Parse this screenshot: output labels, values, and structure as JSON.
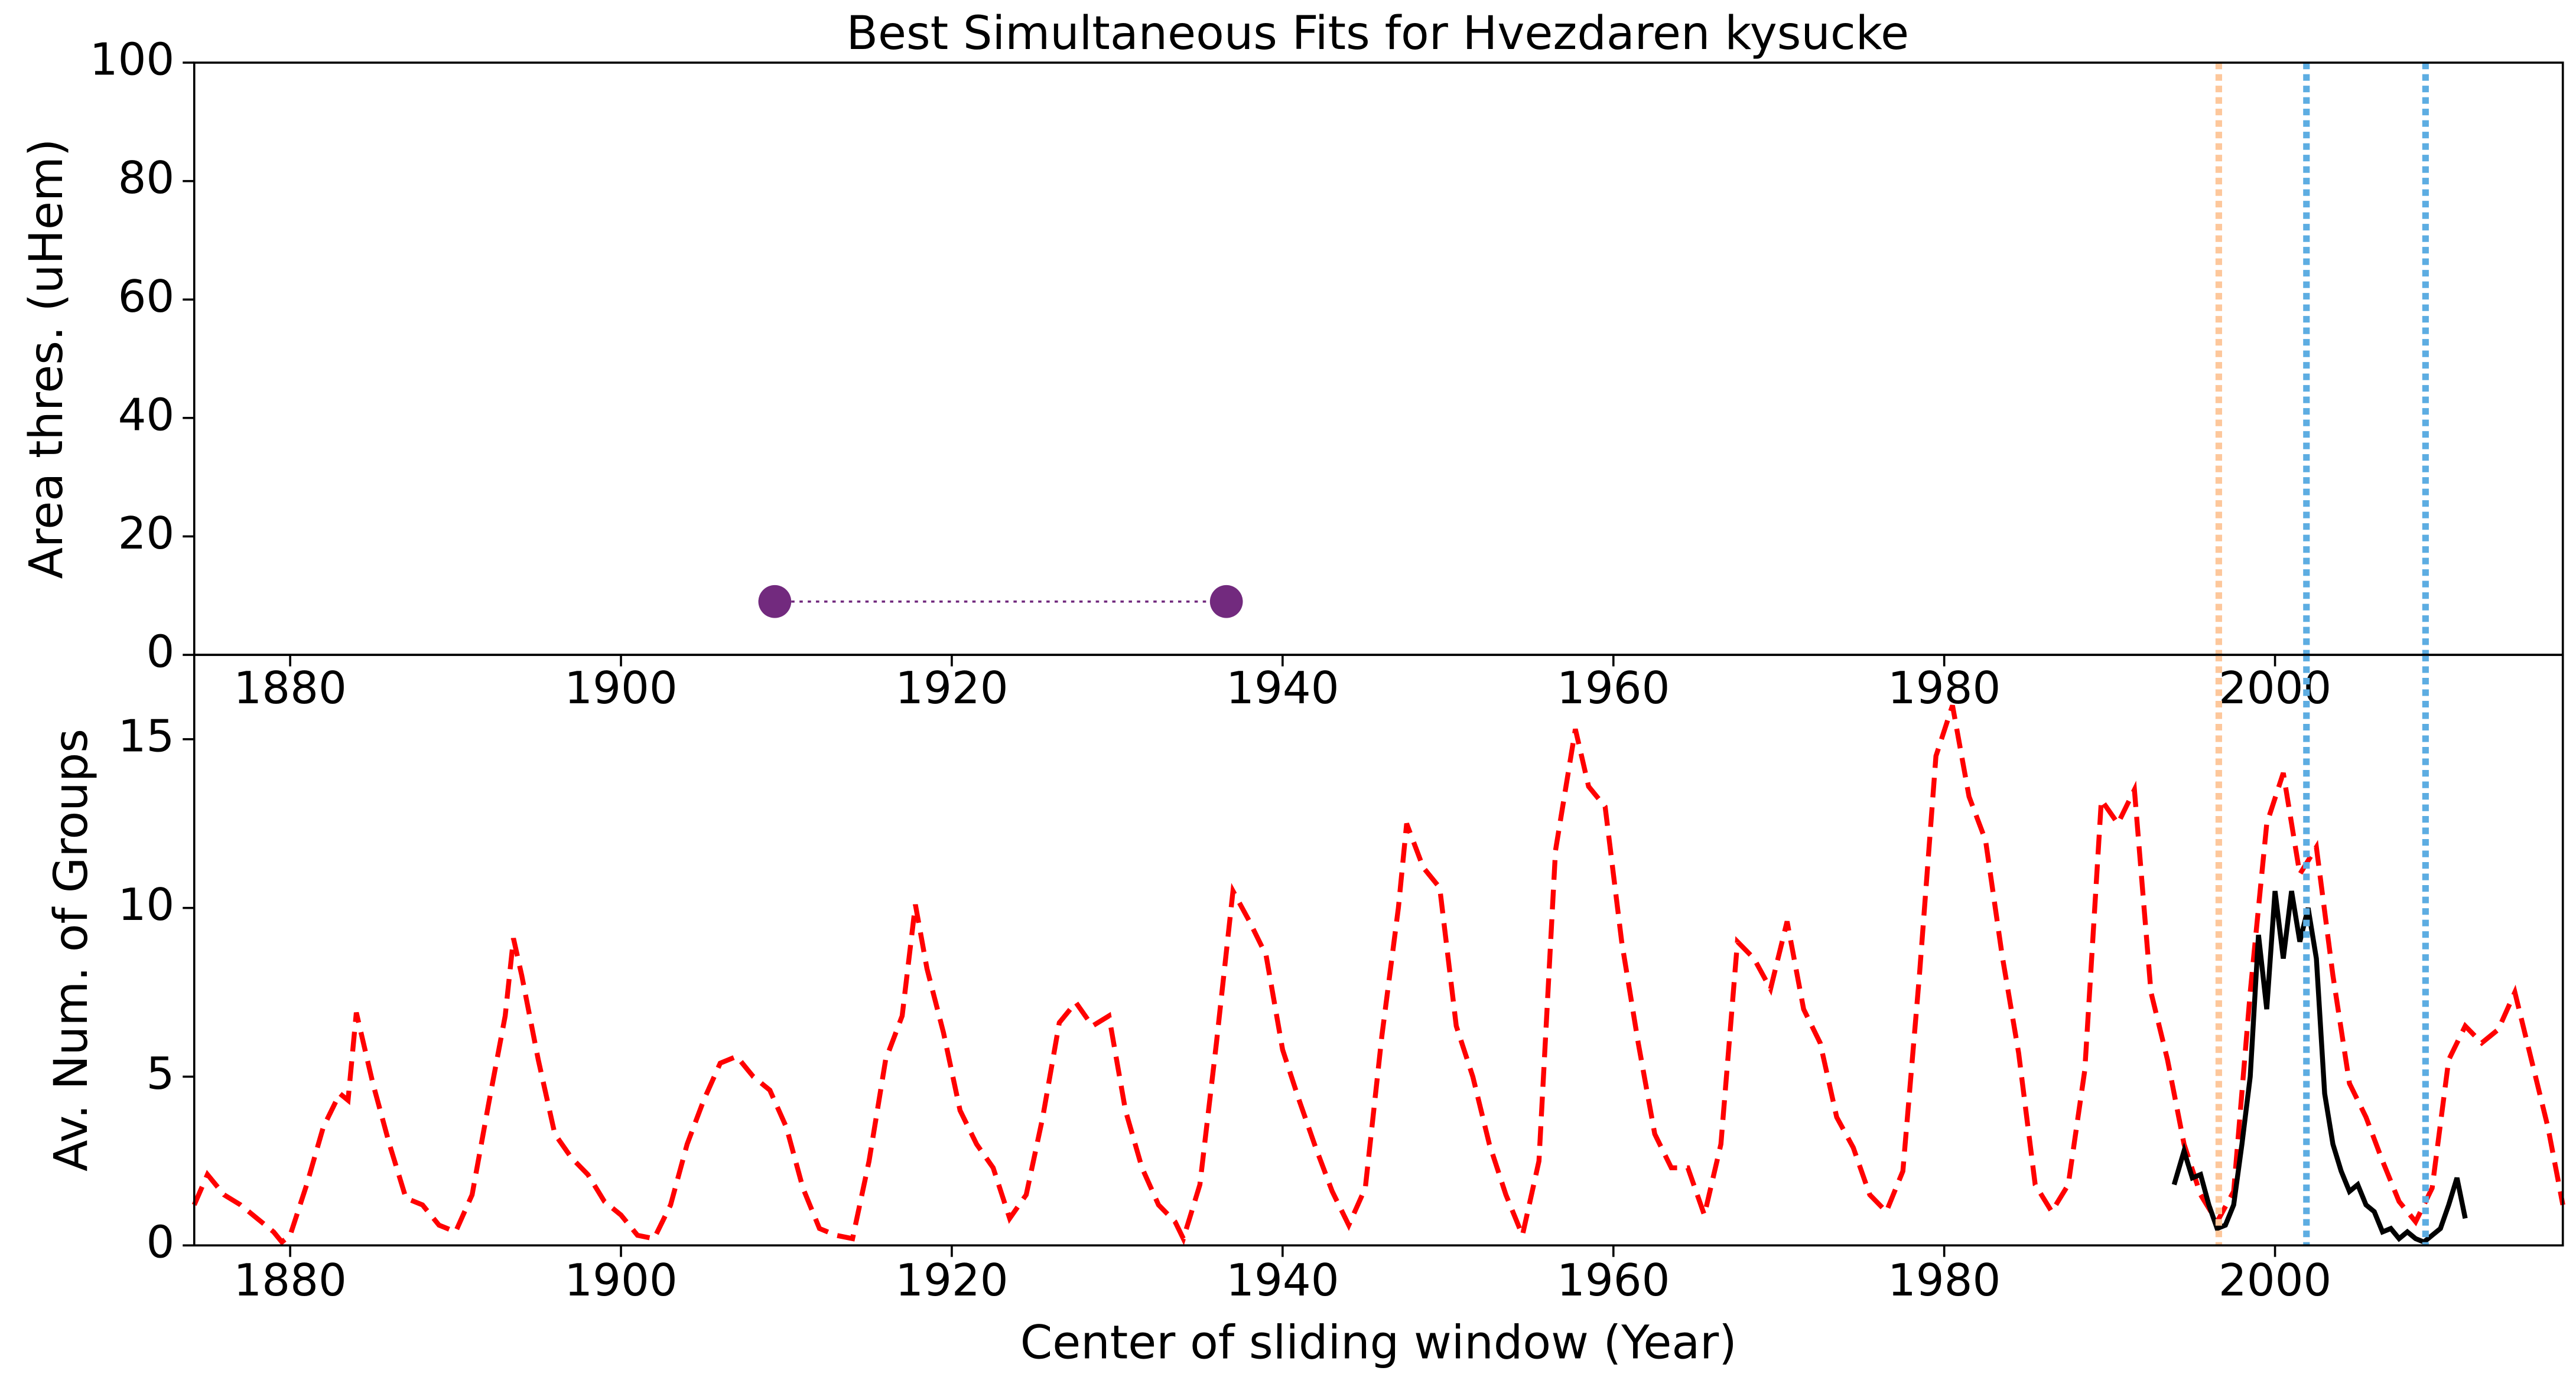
{
  "chart_data": [
    {
      "type": "line",
      "title": "Best Simultaneous Fits for Hvezdaren kysucke",
      "ylabel": "Area thres. (uHem)",
      "x": [
        1909.3,
        1936.6
      ],
      "series": [
        {
          "color": "#722a7e",
          "values": [
            9,
            9
          ],
          "linestyle": "dotted",
          "marker": true
        }
      ],
      "xlim": [
        1874.2,
        2017.4
      ],
      "xticks": [
        1880,
        1900,
        1920,
        1940,
        1960,
        1980,
        2000
      ],
      "ylim": [
        0,
        100
      ],
      "yticks": [
        0,
        20,
        40,
        60,
        80,
        100
      ],
      "vlines": [
        {
          "x": 1996.6,
          "color": "#fdc79b"
        },
        {
          "x": 2001.9,
          "color": "#5dade2"
        },
        {
          "x": 2009.1,
          "color": "#5dade2"
        }
      ]
    },
    {
      "type": "line",
      "xlabel": "Center of sliding window (Year)",
      "ylabel": "Av. Num. of Groups",
      "series": [
        {
          "color": "#ff0000",
          "linestyle": "dashed",
          "x": [
            1874.2,
            1875,
            1876,
            1877,
            1878,
            1879,
            1879.5,
            1880,
            1881,
            1882,
            1883,
            1883.5,
            1884,
            1885,
            1886,
            1887,
            1888,
            1889,
            1890,
            1891,
            1892,
            1893,
            1893.5,
            1894,
            1895,
            1896,
            1897,
            1898,
            1899,
            1900,
            1901,
            1902,
            1903,
            1904,
            1905,
            1906,
            1907,
            1908,
            1909,
            1910,
            1911,
            1912,
            1913,
            1914,
            1915,
            1916,
            1917,
            1917.8,
            1918.5,
            1919.5,
            1920.5,
            1921.5,
            1922.5,
            1923.5,
            1924.5,
            1925.5,
            1926.5,
            1927.5,
            1928.5,
            1929.5,
            1930.5,
            1931.5,
            1932.5,
            1933.5,
            1934,
            1935,
            1936,
            1937,
            1938,
            1939,
            1940,
            1941,
            1942,
            1943,
            1944,
            1945,
            1946,
            1947,
            1947.5,
            1948.5,
            1949.5,
            1950.5,
            1951.5,
            1952.5,
            1953.5,
            1954.5,
            1955.5,
            1956.5,
            1957.7,
            1958.5,
            1959.5,
            1960.5,
            1961.5,
            1962.5,
            1963.5,
            1964.5,
            1965.5,
            1966.5,
            1967.5,
            1968.5,
            1969.5,
            1970.5,
            1971.5,
            1972.5,
            1973.5,
            1974.5,
            1975.5,
            1976.5,
            1977.5,
            1978.5,
            1979.5,
            1980.5,
            1981.5,
            1982.5,
            1983.5,
            1984.5,
            1985.5,
            1986.5,
            1987.5,
            1988.5,
            1989.5,
            1990.5,
            1991.5,
            1992.5,
            1993.5,
            1994.5,
            1995.5,
            1996.5,
            1997.5,
            1998.5,
            1999.5,
            2000.5,
            2001.5,
            2002.5,
            2003.5,
            2004.5,
            2005.5,
            2006.5,
            2007.5,
            2008.5,
            2009.5,
            2010.5,
            2011.5,
            2012.5,
            2013.5,
            2014.5,
            2015.5,
            2016.5,
            2017.4
          ],
          "values": [
            1.2,
            2.1,
            1.5,
            1.2,
            0.8,
            0.4,
            0.1,
            0.3,
            1.8,
            3.5,
            4.5,
            4.3,
            6.9,
            4.8,
            3.0,
            1.4,
            1.2,
            0.6,
            0.4,
            1.5,
            4.2,
            6.8,
            9.1,
            8.0,
            5.5,
            3.3,
            2.6,
            2.1,
            1.3,
            0.9,
            0.3,
            0.2,
            1.2,
            3.0,
            4.3,
            5.4,
            5.6,
            5.0,
            4.6,
            3.5,
            1.7,
            0.5,
            0.3,
            0.2,
            2.5,
            5.5,
            6.8,
            10.1,
            8.2,
            6.3,
            4.0,
            3.0,
            2.3,
            0.8,
            1.5,
            3.8,
            6.6,
            7.2,
            6.5,
            6.8,
            4.0,
            2.3,
            1.2,
            0.7,
            0.2,
            1.8,
            6.0,
            10.5,
            9.6,
            8.6,
            5.8,
            4.3,
            2.9,
            1.6,
            0.6,
            1.7,
            6.2,
            10.0,
            12.5,
            11.2,
            10.6,
            6.5,
            5.0,
            3.0,
            1.5,
            0.3,
            2.5,
            11.7,
            15.3,
            13.6,
            13.0,
            9.0,
            6.0,
            3.3,
            2.3,
            2.3,
            0.9,
            3.0,
            9.0,
            8.5,
            7.6,
            9.6,
            7.0,
            6.0,
            3.8,
            2.9,
            1.5,
            1.0,
            2.2,
            8.0,
            14.5,
            16.0,
            13.3,
            12.0,
            8.6,
            5.7,
            1.8,
            1.0,
            1.8,
            5.2,
            13.2,
            12.5,
            13.5,
            7.5,
            5.5,
            3.0,
            1.5,
            0.7,
            1.6,
            7.5,
            12.5,
            14.0,
            11.0,
            11.8,
            8.0,
            4.8,
            3.8,
            2.5,
            1.3,
            0.7,
            1.7,
            5.5,
            6.5,
            6.0,
            6.4,
            7.5,
            5.5,
            3.5,
            1.2
          ]
        },
        {
          "color": "#000000",
          "linestyle": "solid",
          "x": [
            1993.9,
            1994.5,
            1995.0,
            1995.5,
            1996.0,
            1996.5,
            1997.0,
            1997.5,
            1998,
            1998.5,
            1999,
            1999.5,
            2000,
            2000.5,
            2001,
            2001.5,
            2002,
            2002.5,
            2003,
            2003.5,
            2004,
            2004.5,
            2005,
            2005.5,
            2006,
            2006.5,
            2007,
            2007.5,
            2008,
            2008.5,
            2009,
            2009.5,
            2010,
            2010.5,
            2011,
            2011.5
          ],
          "values": [
            1.8,
            2.8,
            2.0,
            2.1,
            1.2,
            0.5,
            0.6,
            1.2,
            3.0,
            5.0,
            9.2,
            7.0,
            10.5,
            8.5,
            10.5,
            9.0,
            10.0,
            8.5,
            4.5,
            3.0,
            2.2,
            1.6,
            1.8,
            1.2,
            1.0,
            0.4,
            0.5,
            0.2,
            0.4,
            0.2,
            0.1,
            0.3,
            0.5,
            1.2,
            2.0,
            0.8
          ]
        }
      ],
      "xlim": [
        1874.2,
        2017.4
      ],
      "xticks": [
        1880,
        1900,
        1920,
        1940,
        1960,
        1980,
        2000
      ],
      "ylim": [
        0,
        17.5
      ],
      "yticks": [
        0,
        5,
        10,
        15
      ],
      "vlines": [
        {
          "x": 1996.6,
          "color": "#fdc79b"
        },
        {
          "x": 2001.9,
          "color": "#5dade2"
        },
        {
          "x": 2009.1,
          "color": "#5dade2"
        }
      ]
    }
  ]
}
